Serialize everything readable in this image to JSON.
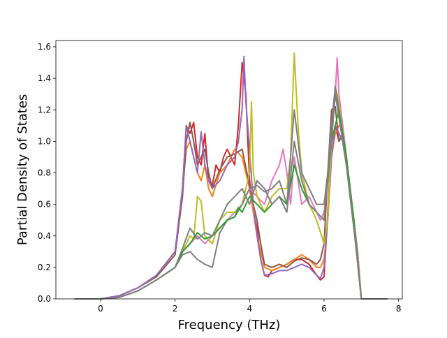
{
  "chart_data": {
    "type": "line",
    "title": "",
    "xlabel": "Frequency (THz)",
    "ylabel": "Partial Density of States",
    "xlim": [
      -1.2,
      8.1
    ],
    "ylim": [
      0.0,
      1.64
    ],
    "xticks": [
      0,
      2,
      4,
      6,
      8
    ],
    "yticks": [
      0.0,
      0.2,
      0.4,
      0.6,
      0.8,
      1.0,
      1.2,
      1.4,
      1.6
    ],
    "grid": false,
    "legend": "none",
    "colors": [
      "#1f77b4",
      "#ff7f0e",
      "#2ca02c",
      "#d62728",
      "#9467bd",
      "#8c564b",
      "#e377c2",
      "#7f7f7f",
      "#bcbd22",
      "#17becf"
    ],
    "series": [
      {
        "color": "#d62728",
        "x": [
          -0.7,
          0.0,
          0.5,
          1.0,
          1.5,
          2.0,
          2.2,
          2.3,
          2.4,
          2.5,
          2.6,
          2.7,
          2.8,
          2.9,
          3.0,
          3.1,
          3.2,
          3.3,
          3.4,
          3.5,
          3.6,
          3.7,
          3.8,
          3.9,
          4.0,
          4.1,
          4.2,
          4.3,
          4.4,
          4.5,
          4.6,
          4.8,
          5.0,
          5.2,
          5.4,
          5.6,
          5.8,
          5.9,
          6.0,
          6.1,
          6.2,
          6.3,
          6.4,
          6.5,
          6.6,
          6.7,
          6.8,
          6.9,
          7.0,
          7.7
        ],
        "y": [
          0.0,
          0.0,
          0.02,
          0.07,
          0.15,
          0.3,
          0.7,
          1.1,
          1.05,
          1.12,
          0.9,
          0.85,
          1.05,
          0.75,
          0.72,
          0.85,
          0.8,
          0.9,
          0.95,
          0.9,
          0.85,
          1.1,
          1.5,
          1.3,
          0.75,
          0.55,
          0.45,
          0.25,
          0.15,
          0.14,
          0.18,
          0.2,
          0.22,
          0.25,
          0.25,
          0.22,
          0.15,
          0.12,
          0.14,
          0.55,
          1.0,
          1.1,
          1.0,
          1.05,
          0.9,
          0.7,
          0.5,
          0.3,
          0.0,
          0.0
        ]
      },
      {
        "color": "#ff7f0e",
        "x": [
          -0.7,
          0.0,
          0.5,
          1.0,
          1.5,
          2.0,
          2.2,
          2.3,
          2.4,
          2.5,
          2.6,
          2.7,
          2.8,
          2.9,
          3.0,
          3.2,
          3.4,
          3.6,
          3.8,
          4.0,
          4.1,
          4.2,
          4.3,
          4.4,
          4.6,
          4.8,
          5.0,
          5.2,
          5.4,
          5.6,
          5.8,
          5.9,
          6.0,
          6.1,
          6.2,
          6.3,
          6.4,
          6.5,
          6.6,
          6.7,
          6.8,
          6.9,
          7.0,
          7.7
        ],
        "y": [
          0.0,
          0.0,
          0.02,
          0.07,
          0.15,
          0.3,
          0.7,
          0.95,
          1.0,
          0.9,
          0.8,
          0.75,
          0.85,
          0.7,
          0.65,
          0.8,
          0.85,
          0.95,
          0.9,
          0.7,
          0.55,
          0.4,
          0.3,
          0.2,
          0.18,
          0.2,
          0.22,
          0.25,
          0.28,
          0.25,
          0.2,
          0.2,
          0.25,
          0.5,
          0.9,
          1.05,
          1.1,
          1.1,
          0.9,
          0.7,
          0.5,
          0.3,
          0.0,
          0.0
        ]
      },
      {
        "color": "#8c564b",
        "x": [
          -0.7,
          0.0,
          0.5,
          1.0,
          1.5,
          2.0,
          2.2,
          2.3,
          2.4,
          2.5,
          2.6,
          2.7,
          2.8,
          2.9,
          3.0,
          3.2,
          3.4,
          3.6,
          3.8,
          4.0,
          4.1,
          4.2,
          4.3,
          4.4,
          4.6,
          4.8,
          5.0,
          5.2,
          5.4,
          5.6,
          5.8,
          5.9,
          6.0,
          6.1,
          6.2,
          6.3,
          6.4,
          6.5,
          6.6,
          6.7,
          6.8,
          6.9,
          7.0,
          7.7
        ],
        "y": [
          0.0,
          0.0,
          0.02,
          0.07,
          0.14,
          0.28,
          0.65,
          1.0,
          1.12,
          1.0,
          0.85,
          0.9,
          0.95,
          0.8,
          0.7,
          0.82,
          0.9,
          0.92,
          0.95,
          0.72,
          0.6,
          0.5,
          0.35,
          0.22,
          0.2,
          0.22,
          0.2,
          0.24,
          0.26,
          0.25,
          0.22,
          0.25,
          0.35,
          0.8,
          1.2,
          1.22,
          1.0,
          1.05,
          0.85,
          0.65,
          0.45,
          0.25,
          0.0,
          0.0
        ]
      },
      {
        "color": "#9467bd",
        "x": [
          -0.7,
          0.0,
          0.5,
          1.0,
          1.5,
          2.0,
          2.2,
          2.3,
          2.4,
          2.5,
          2.6,
          2.7,
          2.8,
          2.9,
          3.0,
          3.2,
          3.4,
          3.6,
          3.7,
          3.8,
          3.85,
          3.9,
          4.0,
          4.1,
          4.2,
          4.3,
          4.4,
          4.6,
          4.8,
          5.0,
          5.2,
          5.4,
          5.6,
          5.8,
          5.9,
          6.0,
          6.1,
          6.2,
          6.3,
          6.4,
          6.5,
          6.6,
          6.7,
          6.8,
          6.9,
          7.0,
          7.7
        ],
        "y": [
          0.0,
          0.0,
          0.02,
          0.07,
          0.15,
          0.3,
          0.7,
          1.1,
          1.0,
          0.9,
          0.8,
          1.06,
          0.85,
          0.75,
          0.7,
          0.75,
          0.85,
          0.9,
          1.0,
          1.2,
          1.54,
          1.25,
          0.95,
          0.6,
          0.4,
          0.25,
          0.15,
          0.16,
          0.18,
          0.18,
          0.2,
          0.22,
          0.2,
          0.15,
          0.13,
          0.2,
          0.5,
          0.9,
          1.1,
          1.05,
          1.0,
          0.85,
          0.65,
          0.45,
          0.25,
          0.0,
          0.0
        ]
      },
      {
        "color": "#e377c2",
        "x": [
          -0.7,
          0.0,
          0.5,
          1.0,
          1.5,
          2.0,
          2.2,
          2.4,
          2.6,
          2.8,
          3.0,
          3.2,
          3.4,
          3.6,
          3.8,
          4.0,
          4.2,
          4.4,
          4.6,
          4.8,
          4.9,
          5.0,
          5.1,
          5.2,
          5.3,
          5.4,
          5.6,
          5.8,
          5.9,
          6.0,
          6.1,
          6.2,
          6.3,
          6.35,
          6.4,
          6.5,
          6.6,
          6.7,
          6.8,
          6.9,
          7.0,
          7.7
        ],
        "y": [
          0.0,
          0.0,
          0.01,
          0.05,
          0.12,
          0.2,
          0.3,
          0.35,
          0.4,
          0.35,
          0.4,
          0.45,
          0.5,
          0.55,
          0.6,
          0.7,
          0.65,
          0.6,
          0.75,
          0.85,
          0.95,
          0.8,
          0.6,
          0.9,
          0.75,
          0.6,
          0.65,
          0.55,
          0.5,
          0.55,
          0.8,
          1.1,
          1.3,
          1.53,
          1.3,
          1.1,
          0.9,
          0.7,
          0.5,
          0.3,
          0.0,
          0.0
        ]
      },
      {
        "color": "#bcbd22",
        "x": [
          -0.7,
          0.0,
          0.5,
          1.0,
          1.5,
          2.0,
          2.2,
          2.4,
          2.5,
          2.6,
          2.7,
          2.8,
          3.0,
          3.2,
          3.4,
          3.6,
          3.8,
          4.0,
          4.05,
          4.1,
          4.2,
          4.4,
          4.6,
          4.8,
          5.0,
          5.1,
          5.2,
          5.3,
          5.4,
          5.6,
          5.8,
          6.0,
          6.1,
          6.2,
          6.3,
          6.4,
          6.5,
          6.6,
          6.7,
          6.8,
          6.9,
          7.0,
          7.7
        ],
        "y": [
          0.0,
          0.0,
          0.01,
          0.05,
          0.12,
          0.2,
          0.3,
          0.4,
          0.38,
          0.65,
          0.62,
          0.4,
          0.35,
          0.5,
          0.55,
          0.55,
          0.6,
          0.8,
          1.25,
          0.8,
          0.65,
          0.55,
          0.65,
          0.7,
          0.7,
          0.9,
          1.56,
          1.1,
          0.8,
          0.6,
          0.5,
          0.35,
          0.5,
          1.0,
          1.35,
          1.25,
          1.0,
          0.85,
          0.65,
          0.45,
          0.25,
          0.0,
          0.0
        ]
      },
      {
        "color": "#7f7f7f",
        "x": [
          -0.7,
          0.0,
          0.5,
          1.0,
          1.5,
          2.0,
          2.2,
          2.4,
          2.6,
          2.8,
          3.0,
          3.2,
          3.4,
          3.6,
          3.8,
          4.0,
          4.2,
          4.4,
          4.6,
          4.8,
          5.0,
          5.1,
          5.2,
          5.3,
          5.4,
          5.6,
          5.8,
          6.0,
          6.1,
          6.2,
          6.3,
          6.4,
          6.5,
          6.6,
          6.7,
          6.8,
          6.9,
          7.0,
          7.7
        ],
        "y": [
          0.0,
          0.0,
          0.01,
          0.05,
          0.12,
          0.2,
          0.28,
          0.3,
          0.25,
          0.22,
          0.2,
          0.42,
          0.5,
          0.52,
          0.6,
          0.7,
          0.72,
          0.68,
          0.7,
          0.75,
          0.6,
          0.9,
          1.2,
          1.0,
          0.8,
          0.7,
          0.6,
          0.6,
          0.8,
          1.1,
          1.35,
          1.2,
          1.0,
          0.85,
          0.65,
          0.45,
          0.25,
          0.0,
          0.0
        ]
      },
      {
        "color": "#2ca02c",
        "x": [
          -0.7,
          0.0,
          0.5,
          1.0,
          1.5,
          2.0,
          2.2,
          2.4,
          2.6,
          2.8,
          3.0,
          3.2,
          3.4,
          3.6,
          3.7,
          3.8,
          4.0,
          4.2,
          4.4,
          4.6,
          4.8,
          5.0,
          5.2,
          5.4,
          5.6,
          5.8,
          6.0,
          6.2,
          6.4,
          6.6,
          6.8,
          7.0,
          7.7
        ],
        "y": [
          0.0,
          0.0,
          0.01,
          0.05,
          0.12,
          0.2,
          0.3,
          0.35,
          0.42,
          0.38,
          0.4,
          0.45,
          0.5,
          0.52,
          0.58,
          0.55,
          0.65,
          0.6,
          0.55,
          0.6,
          0.65,
          0.6,
          0.85,
          0.7,
          0.6,
          0.55,
          0.5,
          1.0,
          1.2,
          0.9,
          0.5,
          0.0,
          0.0
        ]
      },
      {
        "color": "#7f7f7f",
        "x": [
          -0.7,
          0.0,
          0.5,
          1.0,
          1.5,
          2.0,
          2.2,
          2.4,
          2.6,
          2.8,
          3.0,
          3.2,
          3.4,
          3.6,
          3.8,
          4.0,
          4.2,
          4.4,
          4.6,
          4.8,
          5.0,
          5.2,
          5.4,
          5.6,
          5.8,
          6.0,
          6.2,
          6.3,
          6.4,
          6.6,
          6.8,
          7.0,
          7.7
        ],
        "y": [
          0.0,
          0.0,
          0.01,
          0.05,
          0.12,
          0.2,
          0.32,
          0.45,
          0.38,
          0.42,
          0.4,
          0.5,
          0.6,
          0.65,
          0.7,
          0.6,
          0.75,
          0.7,
          0.6,
          0.65,
          0.55,
          1.0,
          0.75,
          0.6,
          0.55,
          0.5,
          1.0,
          1.3,
          1.15,
          0.85,
          0.45,
          0.0,
          0.0
        ]
      }
    ]
  }
}
